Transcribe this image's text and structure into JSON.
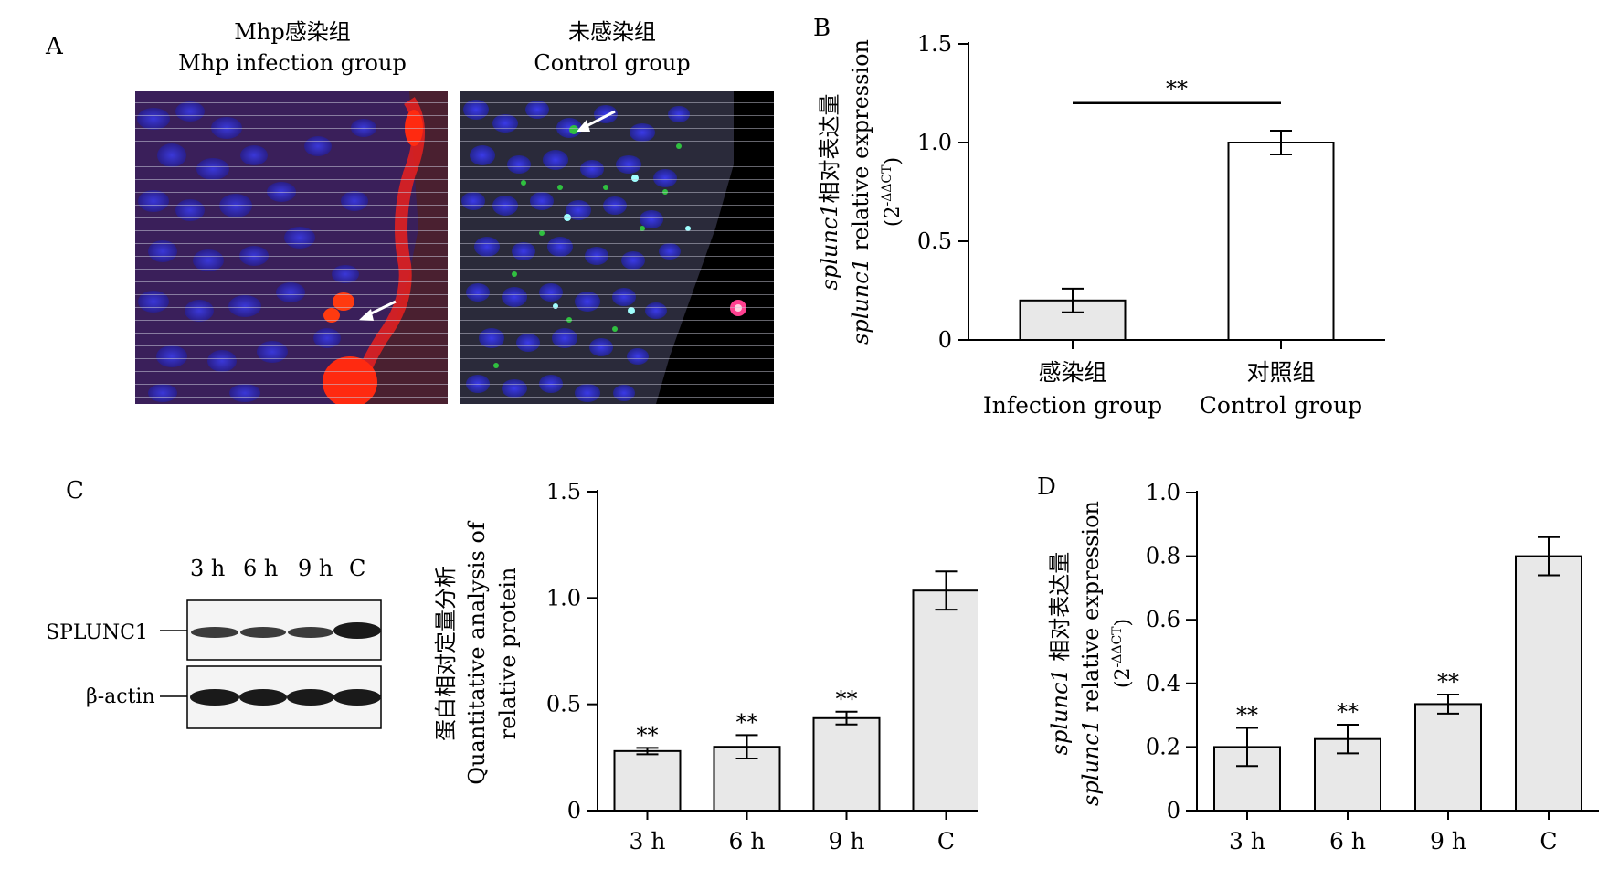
{
  "figure": {
    "panel_a": {
      "letter": "A",
      "left_title_cn": "Mhp感染组",
      "left_title_en": "Mhp infection group",
      "right_title_cn": "未感染组",
      "right_title_en": "Control group"
    },
    "panel_b_letter": "B",
    "panel_c_letter": "C",
    "panel_d_letter": "D",
    "western_blot": {
      "lanes": [
        "3 h",
        "6 h",
        "9 h",
        "C"
      ],
      "row1_label": "SPLUNC1",
      "row2_label": "β-actin"
    }
  },
  "chart_data": [
    {
      "id": "B",
      "type": "bar",
      "categories_cn": [
        "感染组",
        "对照组"
      ],
      "categories": [
        "Infection group",
        "Control group"
      ],
      "values": [
        0.2,
        1.0
      ],
      "errors": [
        0.06,
        0.06
      ],
      "ylim": [
        0,
        1.5
      ],
      "yticks": [
        "0",
        "0.5",
        "1.0",
        "1.5"
      ],
      "ylabel_cn_italic": "splunc1",
      "ylabel_cn": "相对表达量",
      "ylabel_en_italic": "splunc1",
      "ylabel_en": " relative expression",
      "ylabel_unit": "(2",
      "ylabel_unit_sup": "-ΔΔCT",
      "ylabel_unit_close": ")",
      "significance": "**",
      "bar_colors": [
        "#e8e8e8",
        "#ffffff"
      ]
    },
    {
      "id": "C",
      "type": "bar",
      "categories": [
        "3 h",
        "6 h",
        "9 h",
        "C"
      ],
      "values": [
        0.28,
        0.3,
        0.435,
        1.035
      ],
      "errors": [
        0.015,
        0.055,
        0.03,
        0.09
      ],
      "ylim": [
        0,
        1.5
      ],
      "yticks": [
        "0",
        "0.5",
        "1.0",
        "1.5"
      ],
      "ylabel_lines": [
        "蛋白相对定量分析",
        "Quantitative analysis of",
        "relative protein"
      ],
      "annotations": [
        "**",
        "**",
        "**",
        ""
      ],
      "bar_color": "#e8e8e8"
    },
    {
      "id": "D",
      "type": "bar",
      "categories": [
        "3 h",
        "6 h",
        "9 h",
        "C"
      ],
      "values": [
        0.2,
        0.225,
        0.335,
        0.8
      ],
      "errors": [
        0.06,
        0.045,
        0.03,
        0.06
      ],
      "ylim": [
        0,
        1.0
      ],
      "yticks": [
        "0",
        "0.2",
        "0.4",
        "0.6",
        "0.8",
        "1.0"
      ],
      "ylabel_cn_italic": "splunc1",
      "ylabel_cn": " 相对表达量",
      "ylabel_en_italic": "splunc1",
      "ylabel_en": " relative expression",
      "ylabel_unit": "(2",
      "ylabel_unit_sup": "-ΔΔCT",
      "ylabel_unit_close": ")",
      "annotations": [
        "**",
        "**",
        "**",
        ""
      ],
      "bar_color": "#e8e8e8"
    }
  ]
}
